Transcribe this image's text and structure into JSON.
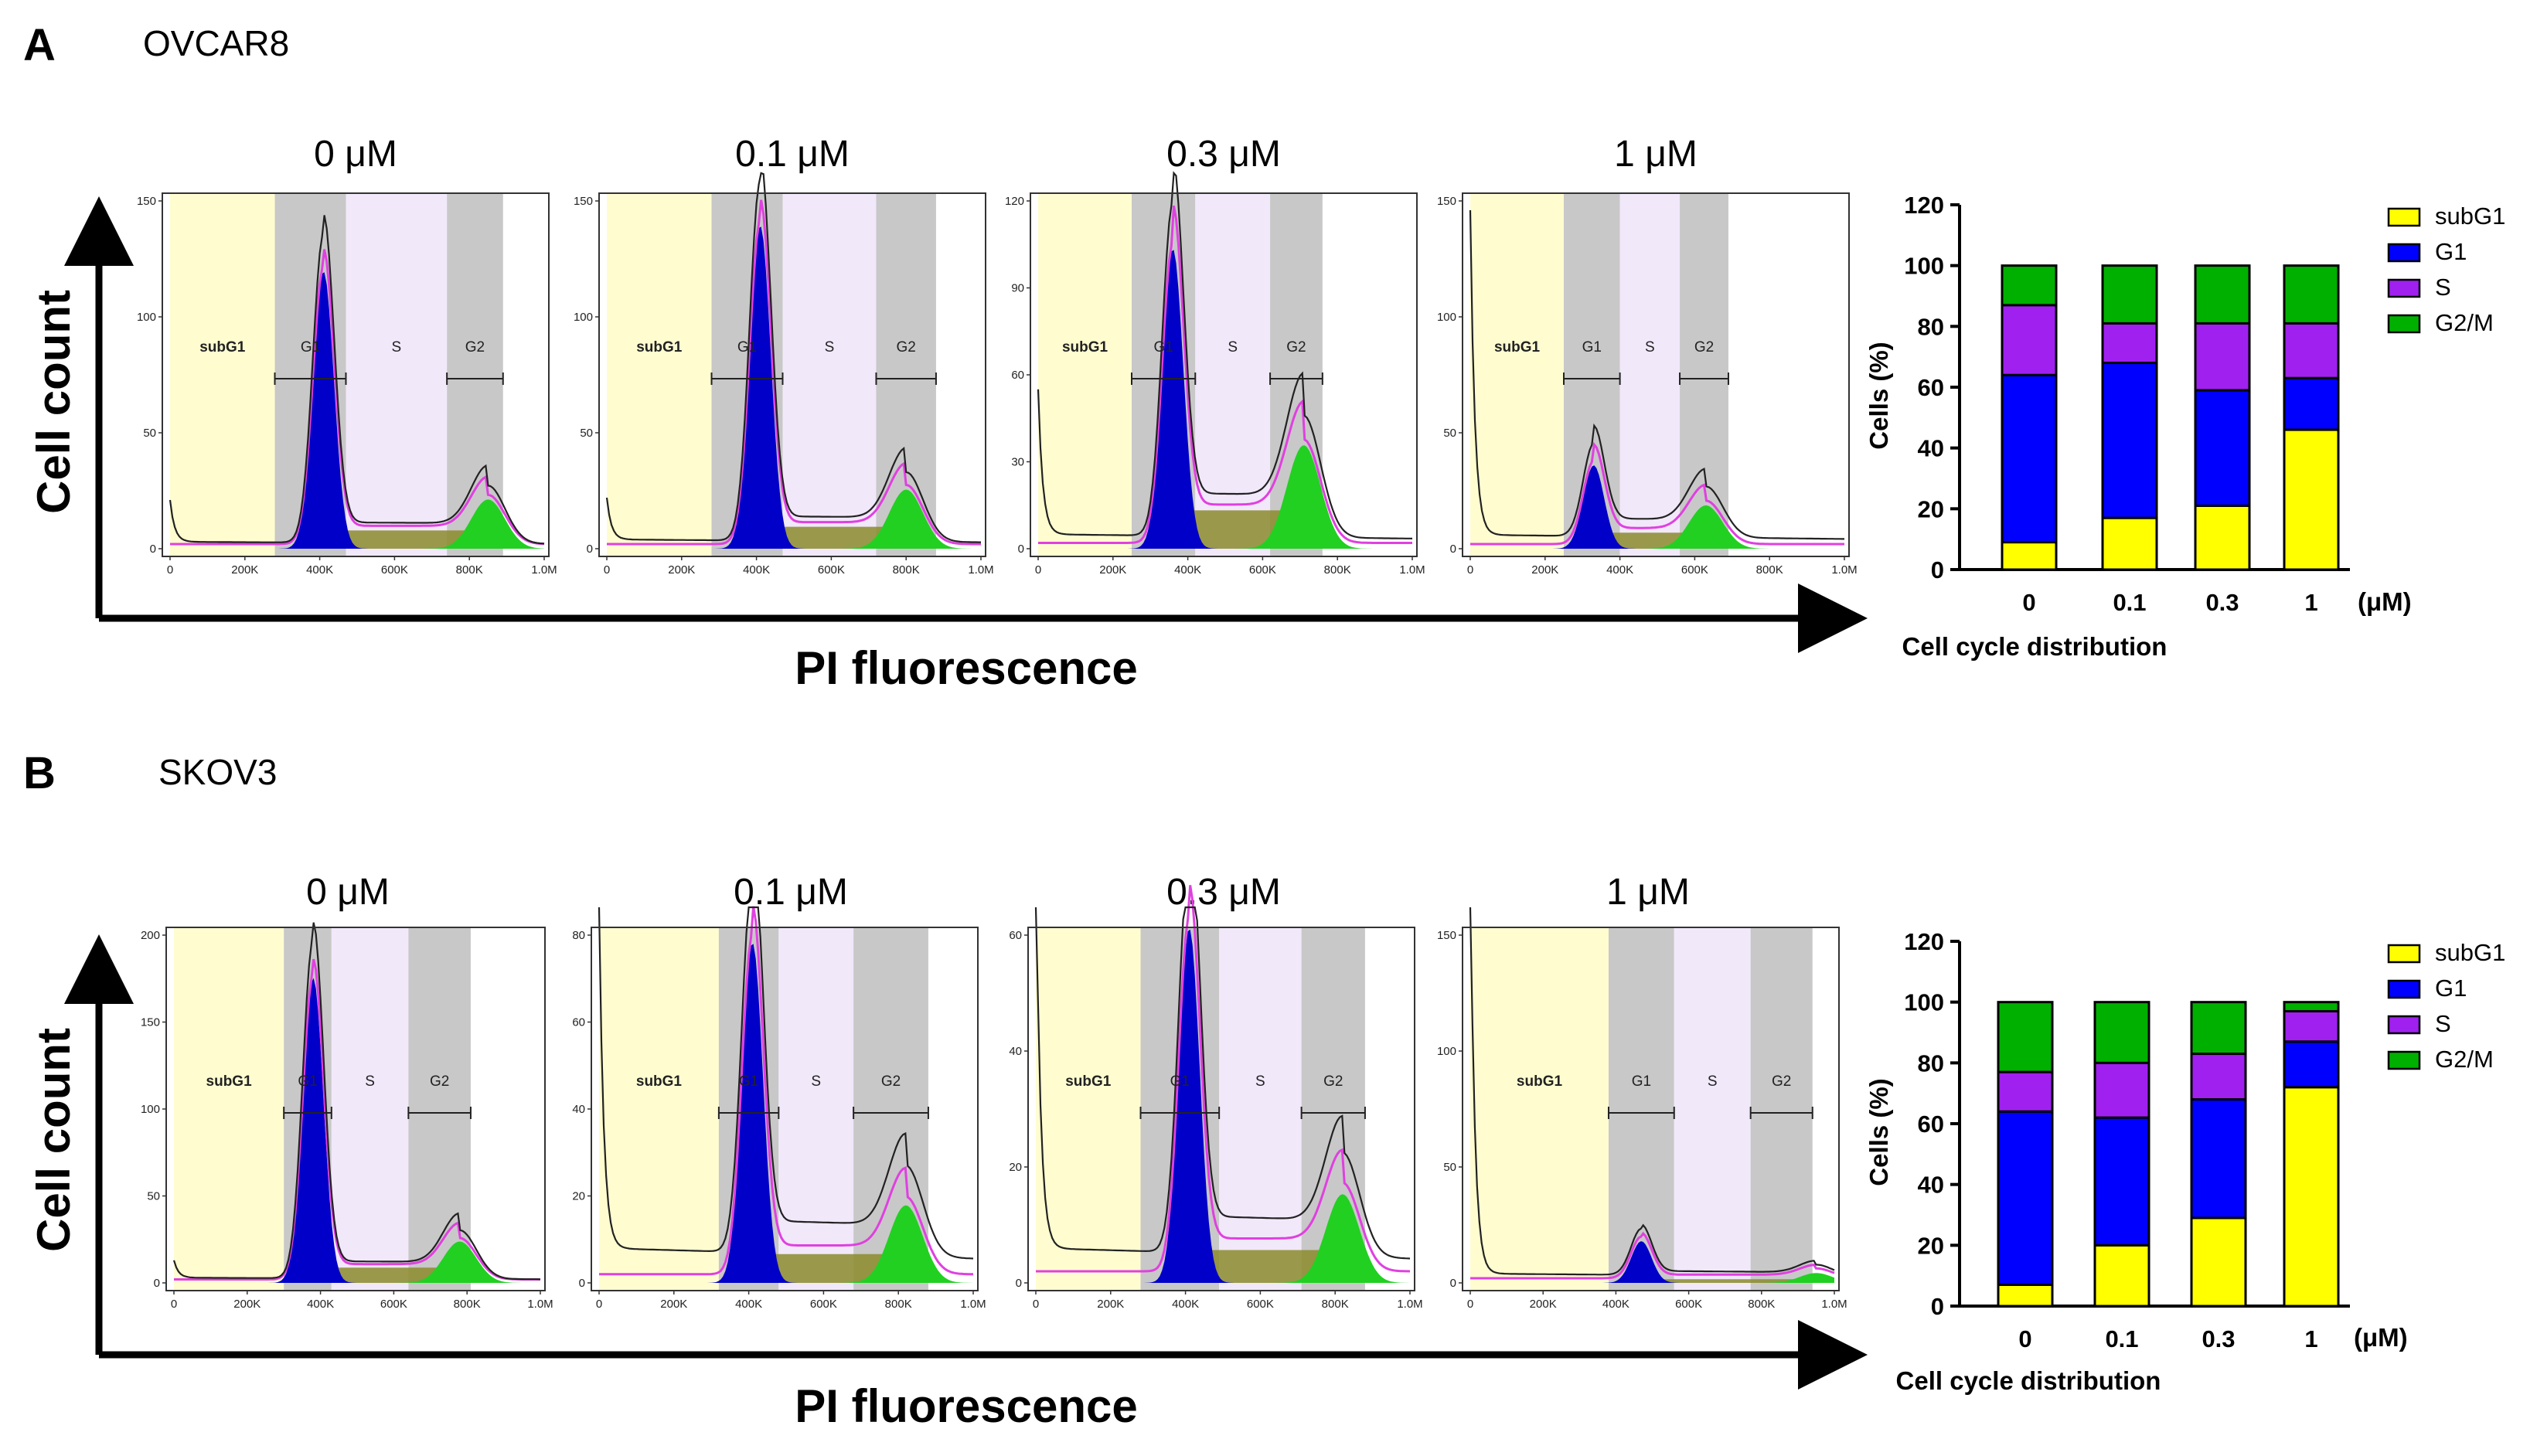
{
  "panels": [
    {
      "letter": "A",
      "cell_line": "OVCAR8",
      "y_axis_label": "Cell count",
      "x_axis_label": "PI fluorescence",
      "x_ticks": [
        "0",
        "200K",
        "400K",
        "600K",
        "800K",
        "1.0M"
      ],
      "gate_labels": {
        "subG1": "subG1",
        "G1": "G1",
        "S": "S",
        "G2": "G2"
      },
      "histograms": [
        {
          "dose": "0 μM",
          "ymax": 150,
          "yticks": [
            0,
            50,
            100,
            150
          ],
          "g1_peak": 133,
          "g2_peak": 25,
          "g1_pos": 0.41,
          "g2_pos": 0.85,
          "subg1_level": 3,
          "edge_spike": 18
        },
        {
          "dose": "0.1 μM",
          "ymax": 150,
          "yticks": [
            0,
            50,
            100,
            150
          ],
          "g1_peak": 155,
          "g2_peak": 30,
          "g1_pos": 0.41,
          "g2_pos": 0.8,
          "subg1_level": 4,
          "edge_spike": 18
        },
        {
          "dose": "0.3 μM",
          "ymax": 120,
          "yticks": [
            0,
            30,
            60,
            90,
            120
          ],
          "g1_peak": 115,
          "g2_peak": 42,
          "g1_pos": 0.36,
          "g2_pos": 0.71,
          "subg1_level": 5,
          "edge_spike": 50
        },
        {
          "dose": "1 μM",
          "ymax": 150,
          "yticks": [
            0,
            50,
            100,
            150
          ],
          "g1_peak": 40,
          "g2_peak": 22,
          "g1_pos": 0.33,
          "g2_pos": 0.63,
          "subg1_level": 6,
          "edge_spike": 140
        }
      ],
      "chart_data": {
        "type": "bar",
        "stacked": true,
        "title": "",
        "xlabel": "Cell cycle distribution",
        "ylabel": "Cells (%)",
        "x_unit": "(μM)",
        "ylim": [
          0,
          120
        ],
        "yticks": [
          0,
          20,
          40,
          60,
          80,
          100,
          120
        ],
        "categories": [
          "0",
          "0.1",
          "0.3",
          "1"
        ],
        "series": [
          {
            "name": "subG1",
            "color": "#FFFF00",
            "values": [
              9,
              17,
              21,
              46
            ]
          },
          {
            "name": "G1",
            "color": "#0000FF",
            "values": [
              55,
              51,
              38,
              17
            ]
          },
          {
            "name": "S",
            "color": "#A020F0",
            "values": [
              23,
              13,
              22,
              18
            ]
          },
          {
            "name": "G2/M",
            "color": "#00B000",
            "values": [
              13,
              19,
              19,
              19
            ]
          }
        ]
      }
    },
    {
      "letter": "B",
      "cell_line": "SKOV3",
      "y_axis_label": "Cell count",
      "x_axis_label": "PI fluorescence",
      "x_ticks": [
        "0",
        "200K",
        "400K",
        "600K",
        "800K",
        "1.0M"
      ],
      "gate_labels": {
        "subG1": "subG1",
        "G1": "G1",
        "S": "S",
        "G2": "G2"
      },
      "histograms": [
        {
          "dose": "0 μM",
          "ymax": 200,
          "yticks": [
            0,
            50,
            100,
            150,
            200
          ],
          "g1_peak": 195,
          "g2_peak": 28,
          "g1_pos": 0.38,
          "g2_pos": 0.78,
          "subg1_level": 3,
          "edge_spike": 10
        },
        {
          "dose": "0.1 μM",
          "ymax": 80,
          "yticks": [
            0,
            20,
            40,
            60,
            80
          ],
          "g1_peak": 87,
          "g2_peak": 21,
          "g1_pos": 0.41,
          "g2_pos": 0.82,
          "subg1_level": 8,
          "edge_spike": 80
        },
        {
          "dose": "0.3 μM",
          "ymax": 60,
          "yticks": [
            0,
            20,
            40,
            60
          ],
          "g1_peak": 68,
          "g2_peak": 18,
          "g1_pos": 0.41,
          "g2_pos": 0.82,
          "subg1_level": 6,
          "edge_spike": 70
        },
        {
          "dose": "1 μM",
          "ymax": 150,
          "yticks": [
            0,
            50,
            100,
            150
          ],
          "g1_peak": 20,
          "g2_peak": 5,
          "g1_pos": 0.47,
          "g2_pos": 0.95,
          "subg1_level": 4,
          "edge_spike": 180
        }
      ],
      "chart_data": {
        "type": "bar",
        "stacked": true,
        "title": "",
        "xlabel": "Cell cycle distribution",
        "ylabel": "Cells (%)",
        "x_unit": "(μM)",
        "ylim": [
          0,
          120
        ],
        "yticks": [
          0,
          20,
          40,
          60,
          80,
          100,
          120
        ],
        "categories": [
          "0",
          "0.1",
          "0.3",
          "1"
        ],
        "series": [
          {
            "name": "subG1",
            "color": "#FFFF00",
            "values": [
              7,
              20,
              29,
              72
            ]
          },
          {
            "name": "G1",
            "color": "#0000FF",
            "values": [
              57,
              42,
              39,
              15
            ]
          },
          {
            "name": "S",
            "color": "#A020F0",
            "values": [
              13,
              18,
              15,
              10
            ]
          },
          {
            "name": "G2/M",
            "color": "#00B000",
            "values": [
              23,
              20,
              17,
              3
            ]
          }
        ]
      }
    }
  ],
  "legend": [
    {
      "name": "subG1",
      "color": "#FFFF00"
    },
    {
      "name": "G1",
      "color": "#0000FF"
    },
    {
      "name": "S",
      "color": "#A020F0"
    },
    {
      "name": "G2/M",
      "color": "#00B000"
    }
  ],
  "colors": {
    "subg1_gate": "#FFFDD0",
    "g_gate": "#C8C8C8",
    "s_gate": "#F1E8FA",
    "olive": "#8B8B2B",
    "fit_line": "#E040E0",
    "g1_fill": "#0000C8",
    "g2_fill": "#22D022"
  }
}
